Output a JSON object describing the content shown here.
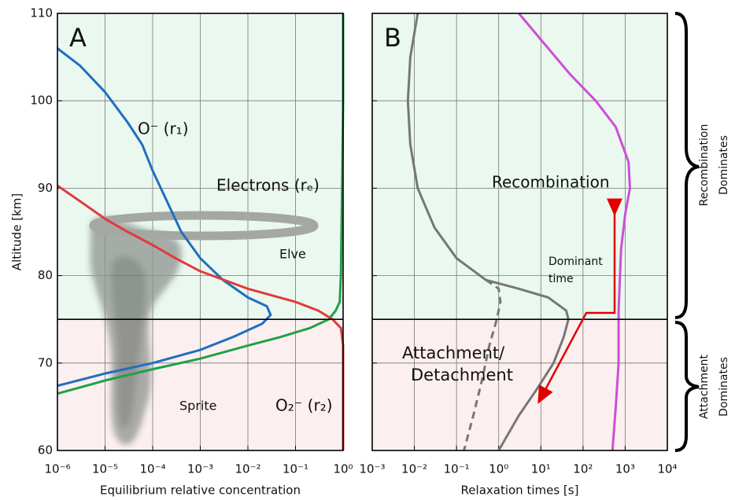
{
  "chart_data": [
    {
      "type": "line",
      "panel_label": "A",
      "xlabel": "Equilibrium relative concentration",
      "ylabel": "Altitude [km]",
      "xscale": "log",
      "xlim": [
        1e-06,
        1
      ],
      "ylim": [
        60,
        110
      ],
      "grid": true,
      "xticks": [
        {
          "value": 1e-06,
          "label": "10⁻⁶"
        },
        {
          "value": 1e-05,
          "label": "10⁻⁵"
        },
        {
          "value": 0.0001,
          "label": "10⁻⁴"
        },
        {
          "value": 0.001,
          "label": "10⁻³"
        },
        {
          "value": 0.01,
          "label": "10⁻²"
        },
        {
          "value": 0.1,
          "label": "10⁻¹"
        },
        {
          "value": 1,
          "label": "10⁰"
        }
      ],
      "yticks": [
        60,
        70,
        80,
        90,
        100,
        110
      ],
      "show_ytick_labels": true,
      "divider": 75,
      "above_color": "#eaf8ef",
      "below_color": "#fbf0ef",
      "series": [
        {
          "name": "O⁻  (r₁)",
          "color": "#1f6fc0",
          "x": [
            1e-06,
            3e-06,
            1e-05,
            3e-05,
            6e-05,
            0.0001,
            0.0002,
            0.0004,
            0.001,
            0.003,
            0.01,
            0.025,
            0.03,
            0.02,
            0.005,
            0.001,
            0.0001,
            1e-05,
            1e-06
          ],
          "y": [
            106,
            104,
            101,
            97.5,
            95,
            92,
            88.5,
            85,
            82,
            79.5,
            77.5,
            76.5,
            75.5,
            74.5,
            73,
            71.5,
            70,
            68.8,
            67.4
          ]
        },
        {
          "name": "Electrons (rₑ)",
          "color": "#1fa04a",
          "x": [
            1,
            1,
            0.95,
            0.9,
            0.85,
            0.7,
            0.5,
            0.2,
            0.05,
            0.01,
            0.001,
            0.0001,
            1e-05,
            1e-06
          ],
          "y": [
            110,
            100,
            90,
            80,
            77,
            76,
            75,
            74,
            73,
            72,
            70.5,
            69.3,
            68,
            66.5
          ]
        },
        {
          "name": "O₂⁻  (r₂)",
          "color": "#e03b3b",
          "x": [
            1e-06,
            3e-06,
            1e-05,
            3e-05,
            0.0001,
            0.0003,
            0.001,
            0.01,
            0.1,
            0.3,
            0.6,
            0.9,
            1,
            1
          ],
          "y": [
            90.3,
            88.5,
            86.5,
            85,
            83.5,
            82,
            80.5,
            78.5,
            77,
            76,
            75,
            74,
            72,
            60
          ]
        }
      ],
      "annotations": [
        "Elve",
        "Sprite"
      ]
    },
    {
      "type": "line",
      "panel_label": "B",
      "xlabel": "Relaxation times [s]",
      "xscale": "log",
      "xlim": [
        0.001,
        10000
      ],
      "ylim": [
        60,
        110
      ],
      "grid": true,
      "xticks": [
        {
          "value": 0.001,
          "label": "10⁻³"
        },
        {
          "value": 0.01,
          "label": "10⁻²"
        },
        {
          "value": 0.1,
          "label": "10⁻¹"
        },
        {
          "value": 1,
          "label": "10⁰"
        },
        {
          "value": 10,
          "label": "10¹"
        },
        {
          "value": 100,
          "label": "10²"
        },
        {
          "value": 1000,
          "label": "10³"
        },
        {
          "value": 10000,
          "label": "10⁴"
        }
      ],
      "yticks": [
        60,
        70,
        80,
        90,
        100,
        110
      ],
      "show_ytick_labels": false,
      "divider": 75,
      "above_color": "#eaf8ef",
      "below_color": "#fbf0ef",
      "series": [
        {
          "color": "#777777",
          "dash": false,
          "x": [
            0.012,
            0.008,
            0.007,
            0.008,
            0.012,
            0.03,
            0.1,
            0.5,
            3,
            15,
            40,
            45,
            35,
            20,
            8,
            3,
            1
          ],
          "y": [
            110,
            105,
            100,
            95,
            90,
            85.5,
            82,
            79.5,
            78.5,
            77.5,
            76,
            75,
            73,
            70,
            67,
            64,
            60
          ]
        },
        {
          "color": "#777777",
          "dash": true,
          "x": [
            0.5,
            1,
            1.1,
            0.9,
            0.6,
            0.4,
            0.25,
            0.15
          ],
          "y": [
            79.5,
            78.5,
            77,
            75,
            72,
            68,
            64,
            60
          ]
        },
        {
          "name": "Recombination",
          "color": "#cc4fd6",
          "dash": false,
          "x": [
            3,
            10,
            50,
            200,
            600,
            1200,
            1300,
            1000,
            800,
            700,
            700,
            600,
            500
          ],
          "y": [
            110,
            107,
            103,
            100,
            97,
            93,
            90,
            87,
            83,
            76,
            70,
            65,
            60
          ]
        }
      ],
      "annotations": [
        [
          "Dominant",
          "time"
        ],
        [
          "Attachment/",
          "Detachment"
        ]
      ],
      "side_labels": [
        [
          "Recombination",
          "Dominates"
        ],
        [
          "Attachment",
          "Dominates"
        ]
      ]
    }
  ]
}
